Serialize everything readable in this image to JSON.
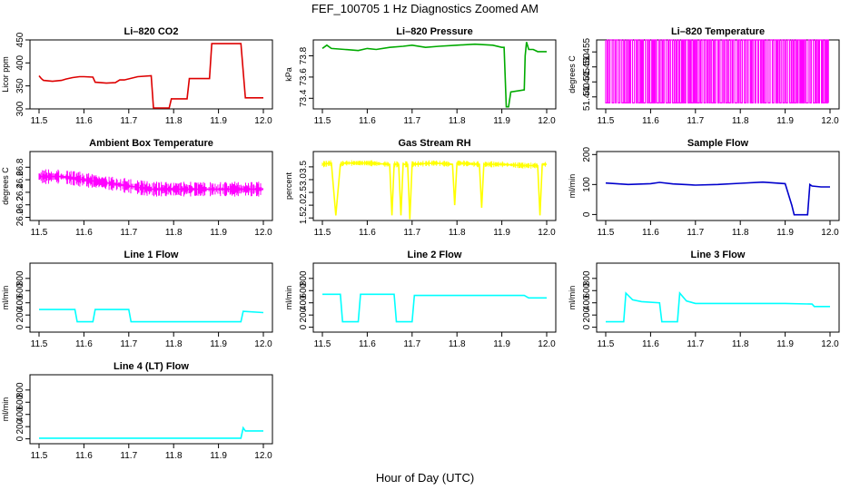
{
  "figure": {
    "title": "FEF_100705  1 Hz Diagnostics Zoomed AM",
    "xlabel": "Hour of Day (UTC)"
  },
  "chart_data": [
    {
      "type": "line",
      "title": "Li–820 CO2",
      "ylabel": "Licor ppm",
      "xlim": [
        11.5,
        12.0
      ],
      "ylim": [
        300,
        450
      ],
      "xticks": [
        "11.5",
        "11.6",
        "11.7",
        "11.8",
        "11.9",
        "12.0"
      ],
      "yticks": [
        "300",
        "350",
        "400",
        "450"
      ],
      "color": "#dd0000",
      "series": [
        {
          "x": [
            11.5,
            11.505,
            11.51,
            11.53,
            11.55,
            11.56,
            11.575,
            11.59,
            11.6,
            11.62,
            11.625,
            11.65,
            11.67,
            11.68,
            11.69,
            11.72,
            11.75,
            11.755,
            11.79,
            11.795,
            11.83,
            11.835,
            11.88,
            11.885,
            11.95,
            11.96,
            11.97,
            12.0
          ],
          "y": [
            372,
            366,
            362,
            360,
            362,
            365,
            368,
            370,
            370,
            369,
            358,
            356,
            357,
            363,
            363,
            370,
            372,
            302,
            302,
            322,
            322,
            366,
            366,
            442,
            442,
            324,
            324,
            324
          ]
        }
      ]
    },
    {
      "type": "line",
      "title": "Li–820 Pressure",
      "ylabel": "kPa",
      "xlim": [
        11.5,
        12.0
      ],
      "ylim": [
        73.3,
        73.95
      ],
      "xticks": [
        "11.5",
        "11.6",
        "11.7",
        "11.8",
        "11.9",
        "12.0"
      ],
      "yticks": [
        "73.4",
        "73.6",
        "73.8"
      ],
      "color": "#00aa00",
      "series": [
        {
          "x": [
            11.5,
            11.51,
            11.52,
            11.55,
            11.58,
            11.6,
            11.62,
            11.65,
            11.68,
            11.7,
            11.73,
            11.76,
            11.8,
            11.84,
            11.88,
            11.9,
            11.905,
            11.91,
            11.915,
            11.92,
            11.95,
            11.952,
            11.955,
            11.96,
            11.97,
            11.98,
            12.0
          ],
          "y": [
            73.87,
            73.9,
            73.87,
            73.86,
            73.85,
            73.87,
            73.86,
            73.88,
            73.89,
            73.9,
            73.88,
            73.89,
            73.9,
            73.91,
            73.9,
            73.88,
            73.88,
            73.32,
            73.32,
            73.46,
            73.48,
            73.8,
            73.93,
            73.86,
            73.86,
            73.84,
            73.84
          ]
        }
      ]
    },
    {
      "type": "line",
      "title": "Li–820 Temperature",
      "ylabel": "degrees C",
      "xlim": [
        11.5,
        12.0
      ],
      "ylim": [
        51.436,
        51.459
      ],
      "xticks": [
        "11.5",
        "11.6",
        "11.7",
        "11.8",
        "11.9",
        "12.0"
      ],
      "yticks": [
        "51.440",
        "51.445",
        "51.450",
        "51.455"
      ],
      "color": "#ff00ff",
      "series": [
        {
          "name": "",
          "low": 51.438,
          "high": 51.459
        }
      ]
    },
    {
      "type": "line",
      "title": "Ambient Box Temperature",
      "ylabel": "degrees C",
      "xlim": [
        11.5,
        12.0
      ],
      "ylim": [
        25.95,
        27.05
      ],
      "xticks": [
        "11.5",
        "11.6",
        "11.7",
        "11.8",
        "11.9",
        "12.0"
      ],
      "yticks": [
        "26.0",
        "26.2",
        "26.4",
        "26.6",
        "26.8"
      ],
      "color": "#ff00ff",
      "series": [
        {
          "x": [
            11.5,
            11.55,
            11.6,
            11.65,
            11.7,
            11.75,
            11.8,
            11.85,
            11.9,
            11.95,
            12.0
          ],
          "y": [
            26.65,
            26.65,
            26.6,
            26.55,
            26.5,
            26.45,
            26.45,
            26.45,
            26.45,
            26.45,
            26.45
          ]
        }
      ]
    },
    {
      "type": "line",
      "title": "Gas Stream RH",
      "ylabel": "percent",
      "xlim": [
        11.5,
        12.0
      ],
      "ylim": [
        1.4,
        4.1
      ],
      "xticks": [
        "11.5",
        "11.6",
        "11.7",
        "11.8",
        "11.9",
        "12.0"
      ],
      "yticks": [
        "1.5",
        "2.0",
        "2.5",
        "3.0",
        "3.5"
      ],
      "color": "#ffff00",
      "series": [
        {
          "x": [
            11.5,
            11.52,
            11.53,
            11.54,
            11.55,
            11.6,
            11.65,
            11.655,
            11.66,
            11.67,
            11.675,
            11.68,
            11.69,
            11.695,
            11.7,
            11.75,
            11.79,
            11.795,
            11.8,
            11.85,
            11.855,
            11.86,
            11.9,
            11.95,
            11.98,
            11.985,
            11.99,
            12.0
          ],
          "y": [
            3.6,
            3.65,
            1.6,
            3.6,
            3.65,
            3.65,
            3.6,
            1.6,
            3.6,
            3.6,
            1.6,
            3.6,
            3.6,
            1.45,
            3.6,
            3.65,
            3.6,
            2.0,
            3.65,
            3.6,
            1.9,
            3.6,
            3.6,
            3.55,
            3.55,
            1.6,
            3.6,
            3.6
          ]
        }
      ]
    },
    {
      "type": "line",
      "title": "Sample Flow",
      "ylabel": "ml/min",
      "xlim": [
        11.5,
        12.0
      ],
      "ylim": [
        -20,
        210
      ],
      "xticks": [
        "11.5",
        "11.6",
        "11.7",
        "11.8",
        "11.9",
        "12.0"
      ],
      "yticks": [
        "0",
        "100",
        "200"
      ],
      "color": "#0000cc",
      "series": [
        {
          "x": [
            11.5,
            11.55,
            11.6,
            11.62,
            11.65,
            11.7,
            11.75,
            11.8,
            11.85,
            11.9,
            11.915,
            11.92,
            11.95,
            11.955,
            11.96,
            11.98,
            12.0
          ],
          "y": [
            105,
            100,
            103,
            107,
            102,
            98,
            100,
            104,
            108,
            103,
            30,
            -1,
            -1,
            100,
            95,
            92,
            92
          ]
        }
      ]
    },
    {
      "type": "line",
      "title": "Line 1 Flow",
      "ylabel": "ml/min",
      "xlim": [
        11.5,
        12.0
      ],
      "ylim": [
        -80,
        1050
      ],
      "xticks": [
        "11.5",
        "11.6",
        "11.7",
        "11.8",
        "11.9",
        "12.0"
      ],
      "yticks": [
        "0",
        "200",
        "400",
        "600",
        "800"
      ],
      "color": "#00ffff",
      "series": [
        {
          "x": [
            11.5,
            11.58,
            11.585,
            11.62,
            11.625,
            11.7,
            11.705,
            11.95,
            11.955,
            12.0
          ],
          "y": [
            290,
            290,
            90,
            90,
            290,
            290,
            90,
            90,
            260,
            240
          ]
        }
      ]
    },
    {
      "type": "line",
      "title": "Line 2 Flow",
      "ylabel": "ml/min",
      "xlim": [
        11.5,
        12.0
      ],
      "ylim": [
        -80,
        1050
      ],
      "xticks": [
        "11.5",
        "11.6",
        "11.7",
        "11.8",
        "11.9",
        "12.0"
      ],
      "yticks": [
        "0",
        "200",
        "400",
        "600",
        "800"
      ],
      "color": "#00ffff",
      "series": [
        {
          "x": [
            11.5,
            11.54,
            11.545,
            11.58,
            11.585,
            11.66,
            11.665,
            11.7,
            11.705,
            11.95,
            11.96,
            12.0
          ],
          "y": [
            540,
            540,
            90,
            90,
            540,
            540,
            90,
            90,
            520,
            520,
            480,
            480
          ]
        }
      ]
    },
    {
      "type": "line",
      "title": "Line 3 Flow",
      "ylabel": "ml/min",
      "xlim": [
        11.5,
        12.0
      ],
      "ylim": [
        -80,
        1050
      ],
      "xticks": [
        "11.5",
        "11.6",
        "11.7",
        "11.8",
        "11.9",
        "12.0"
      ],
      "yticks": [
        "0",
        "200",
        "400",
        "600",
        "800"
      ],
      "color": "#00ffff",
      "series": [
        {
          "x": [
            11.5,
            11.54,
            11.545,
            11.56,
            11.58,
            11.62,
            11.625,
            11.66,
            11.665,
            11.68,
            11.7,
            11.8,
            11.9,
            11.96,
            11.965,
            12.0
          ],
          "y": [
            90,
            90,
            560,
            450,
            420,
            400,
            90,
            90,
            560,
            430,
            390,
            390,
            390,
            380,
            340,
            340
          ]
        }
      ]
    },
    {
      "type": "line",
      "title": "Line 4 (LT) Flow",
      "ylabel": "ml/min",
      "xlim": [
        11.5,
        12.0
      ],
      "ylim": [
        -80,
        1050
      ],
      "xticks": [
        "11.5",
        "11.6",
        "11.7",
        "11.8",
        "11.9",
        "12.0"
      ],
      "yticks": [
        "0",
        "200",
        "400",
        "600",
        "800"
      ],
      "color": "#00ffff",
      "series": [
        {
          "x": [
            11.5,
            11.95,
            11.955,
            11.96,
            11.97,
            12.0
          ],
          "y": [
            10,
            10,
            180,
            130,
            130,
            130
          ]
        }
      ]
    }
  ]
}
